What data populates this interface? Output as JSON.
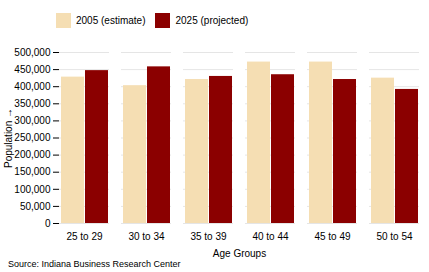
{
  "chart_data": {
    "type": "bar",
    "categories": [
      "25 to 29",
      "30 to 34",
      "35 to 39",
      "40 to 44",
      "45 to 49",
      "50 to 54"
    ],
    "series": [
      {
        "name": "2005 (estimate)",
        "color": "#F5DEB3",
        "values": [
          428000,
          403000,
          421000,
          472000,
          472000,
          425000
        ]
      },
      {
        "name": "2025 (projected)",
        "color": "#8B0000",
        "values": [
          447000,
          458000,
          430000,
          435000,
          421000,
          392000
        ]
      }
    ],
    "xlabel": "Age Groups",
    "ylabel": "Population",
    "annotations": [
      "Source: Indiana Business Research Center"
    ],
    "ylim": [
      0,
      500000
    ],
    "yticks": [
      0,
      {
        "value": 50000,
        "label": "50,000"
      },
      {
        "value": 100000,
        "label": "100,000"
      },
      {
        "value": 150000,
        "label": "150,000"
      },
      {
        "value": 200000,
        "label": "200,000"
      },
      {
        "value": 250000,
        "label": "250,000"
      },
      {
        "value": 300000,
        "label": "300,000"
      },
      {
        "value": 350000,
        "label": "350,000"
      },
      {
        "value": 400000,
        "label": "400,000"
      },
      {
        "value": 450000,
        "label": "450,000"
      },
      {
        "value": 500000,
        "label": "500,000"
      }
    ],
    "grid": true,
    "legend": "top left"
  }
}
